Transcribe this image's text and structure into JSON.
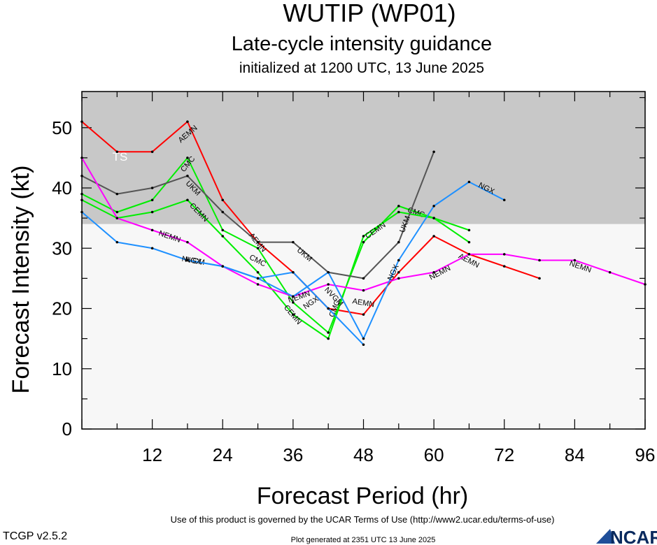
{
  "header": {
    "title": "WUTIP (WP01)",
    "subtitle": "Late-cycle intensity guidance",
    "init_line": "initialized at 1200 UTC, 13 June 2025"
  },
  "footer": {
    "terms": "Use of this product is governed by the UCAR Terms of Use (http://www2.ucar.edu/terms-of-use)",
    "version": "TCGP v2.5.2",
    "generated": "Plot generated at 2351 UTC   13 June 2025",
    "logo_text": "NCAR"
  },
  "colors": {
    "ts_band": "#c8c8c8",
    "td_band": "#f7f7f7"
  },
  "chart_data": {
    "type": "line",
    "xlabel": "Forecast Period (hr)",
    "ylabel": "Forecast Intensity (kt)",
    "xlim": [
      0,
      96
    ],
    "ylim": [
      0,
      56
    ],
    "xticks": [
      12,
      24,
      36,
      48,
      60,
      72,
      84,
      96
    ],
    "yticks": [
      0,
      10,
      20,
      30,
      40,
      50
    ],
    "bands": [
      {
        "label": "TS",
        "from": 34,
        "to": 56,
        "color": "#c8c8c8"
      },
      {
        "label": "",
        "from": 0,
        "to": 34,
        "color": "#f7f7f7"
      }
    ],
    "series": [
      {
        "name": "AEMN",
        "color": "#ff0000",
        "labels": [
          {
            "x": 18,
            "y": 49
          },
          {
            "x": 30,
            "y": 31
          },
          {
            "x": 48,
            "y": 21
          },
          {
            "x": 66,
            "y": 28
          }
        ],
        "x": [
          0,
          6,
          12,
          18,
          24,
          30,
          36,
          42,
          48,
          54,
          60,
          66,
          72,
          78
        ],
        "y": [
          51,
          46,
          46,
          51,
          38,
          31,
          26,
          20,
          19,
          26,
          32,
          29,
          27,
          25
        ]
      },
      {
        "name": "CMC",
        "color": "#00ee00",
        "labels": [
          {
            "x": 18,
            "y": 44
          },
          {
            "x": 30,
            "y": 28
          },
          {
            "x": 43,
            "y": 20
          },
          {
            "x": 57,
            "y": 36
          }
        ],
        "x": [
          0,
          6,
          12,
          18,
          24,
          30,
          36,
          42,
          48,
          54,
          60,
          66
        ],
        "y": [
          39,
          36,
          38,
          45,
          33,
          30,
          21,
          16,
          31,
          37,
          35,
          31
        ]
      },
      {
        "name": "CEMN",
        "color": "#00ee00",
        "labels": [
          {
            "x": 20,
            "y": 36
          },
          {
            "x": 36,
            "y": 19
          },
          {
            "x": 50,
            "y": 33
          }
        ],
        "x": [
          0,
          6,
          12,
          18,
          24,
          30,
          36,
          42,
          48,
          54,
          60,
          66
        ],
        "y": [
          38,
          35,
          36,
          38,
          32,
          26,
          19,
          15,
          32,
          36,
          35,
          33
        ]
      },
      {
        "name": "UKM",
        "color": "#555555",
        "labels": [
          {
            "x": 19,
            "y": 40
          },
          {
            "x": 38,
            "y": 29
          },
          {
            "x": 55,
            "y": 34
          }
        ],
        "x": [
          0,
          6,
          12,
          18,
          24,
          30,
          36,
          42,
          48,
          54,
          60
        ],
        "y": [
          42,
          39,
          40,
          42,
          36,
          31,
          31,
          26,
          25,
          31,
          46
        ]
      },
      {
        "name": "NEMN",
        "color": "#ff00ff",
        "labels": [
          {
            "x": 15,
            "y": 32
          },
          {
            "x": 37,
            "y": 22
          },
          {
            "x": 61,
            "y": 26
          },
          {
            "x": 85,
            "y": 27
          }
        ],
        "x": [
          0,
          6,
          12,
          18,
          24,
          30,
          36,
          42,
          48,
          54,
          60,
          66,
          72,
          78,
          84,
          90,
          96
        ],
        "y": [
          45,
          35,
          33,
          31,
          27,
          24,
          22,
          24,
          23,
          25,
          26,
          29,
          29,
          28,
          28,
          26,
          24
        ]
      },
      {
        "name": "NVGM",
        "color": "#1e90ff",
        "labels": [
          {
            "x": 19,
            "y": 28
          },
          {
            "x": 43,
            "y": 22
          }
        ],
        "x": [
          0,
          6,
          12,
          18,
          24,
          30,
          36,
          42,
          48
        ],
        "y": [
          36,
          31,
          30,
          28,
          27,
          25,
          26,
          20,
          14
        ]
      },
      {
        "name": "NGX",
        "color": "#1e90ff",
        "labels": [
          {
            "x": 19,
            "y": 28
          },
          {
            "x": 39,
            "y": 21
          },
          {
            "x": 53,
            "y": 26
          },
          {
            "x": 69,
            "y": 40
          }
        ],
        "x": [
          18,
          24,
          30,
          36,
          42,
          48,
          54,
          60,
          66,
          72
        ],
        "y": [
          28,
          27,
          25,
          22,
          26,
          15,
          28,
          37,
          41,
          38
        ]
      }
    ]
  }
}
